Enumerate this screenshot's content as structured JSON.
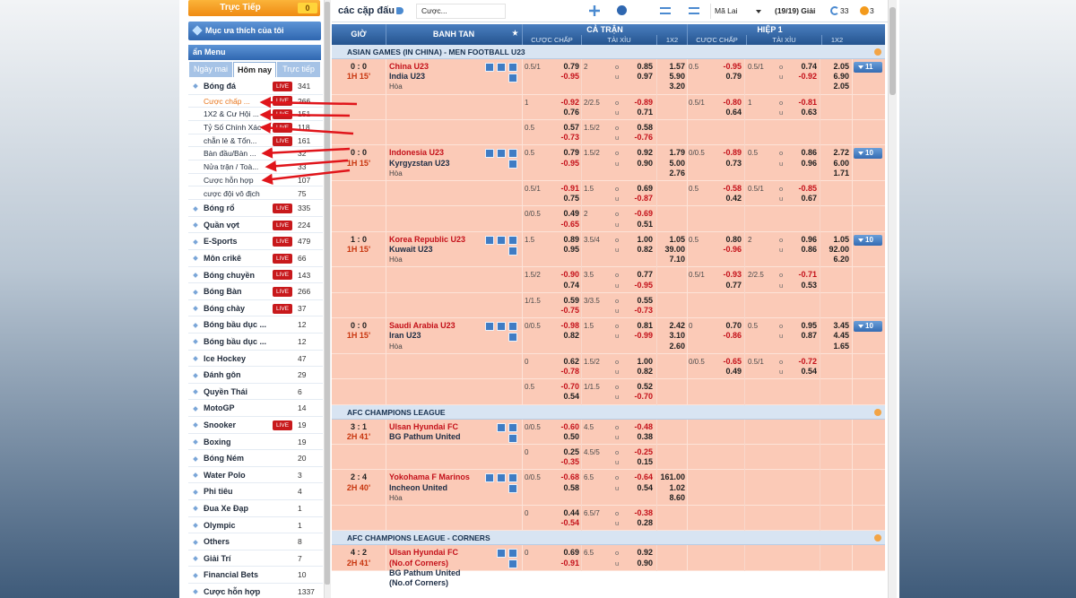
{
  "top_bar": {
    "title": "các cặp đấu",
    "bet_select": "Cược...",
    "odds_type": "Mã Lai",
    "league_count": "(19/19) Giải",
    "refresh_count": "33",
    "parlay_count": "3"
  },
  "sidebar": {
    "live_button": "Trực Tiếp",
    "live_count": "0",
    "favorites": "Mục ưa thích của tôi",
    "menu_toggle": "ẩn Menu",
    "tabs": [
      "Ngày mai",
      "Hôm nay",
      "Trực tiếp"
    ],
    "active_tab": 1,
    "sports": [
      {
        "name": "Bóng đá",
        "badge": "LIVE",
        "count": 341,
        "sub": [
          {
            "name": "Cược chấp ...",
            "badge": "LIVE",
            "count": 266,
            "active": true
          },
          {
            "name": "1X2 & Cư Hội ...",
            "badge": "LIVE",
            "count": 151
          },
          {
            "name": "Tỷ Số Chính Xác",
            "badge": "LIVE",
            "count": 118
          },
          {
            "name": "chẵn lẻ & Tổn...",
            "badge": "LIVE",
            "count": 161
          },
          {
            "name": "Bàn đầu/Bàn ...",
            "count": 32
          },
          {
            "name": "Nửa trận / Toà...",
            "count": 33
          },
          {
            "name": "Cược hỗn hợp",
            "count": 107
          },
          {
            "name": "cược đội vô địch",
            "count": 75
          }
        ]
      },
      {
        "name": "Bóng rổ",
        "badge": "LIVE",
        "count": 335
      },
      {
        "name": "Quần vợt",
        "badge": "LIVE",
        "count": 224
      },
      {
        "name": "E-Sports",
        "badge": "LIVE",
        "count": 479
      },
      {
        "name": "Môn crikê",
        "badge": "LIVE",
        "count": 66
      },
      {
        "name": "Bóng chuyền",
        "badge": "LIVE",
        "count": 143
      },
      {
        "name": "Bóng Bàn",
        "badge": "LIVE",
        "count": 266
      },
      {
        "name": "Bóng chày",
        "badge": "LIVE",
        "count": 37
      },
      {
        "name": "Bóng bầu dục ...",
        "count": 12
      },
      {
        "name": "Bóng bầu dục ...",
        "count": 12
      },
      {
        "name": "Ice Hockey",
        "count": 47
      },
      {
        "name": "Đánh gôn",
        "count": 29
      },
      {
        "name": "Quyền Thái",
        "count": 6
      },
      {
        "name": "MotoGP",
        "count": 14
      },
      {
        "name": "Snooker",
        "badge": "LIVE",
        "count": 19
      },
      {
        "name": "Boxing",
        "count": 19
      },
      {
        "name": "Bóng Ném",
        "count": 20
      },
      {
        "name": "Water Polo",
        "count": 3
      },
      {
        "name": "Phi tiêu",
        "count": 4
      },
      {
        "name": "Đua Xe Đạp",
        "count": 1
      },
      {
        "name": "Olympic",
        "count": 1
      },
      {
        "name": "Others",
        "count": 8
      },
      {
        "name": "Giải Trí",
        "count": 7
      },
      {
        "name": "Financial Bets",
        "count": 10
      },
      {
        "name": "Cược hỗn hợp",
        "count": 1337
      }
    ]
  },
  "table": {
    "headers": {
      "time": "GIỜ",
      "match": "BANH TAN",
      "full_time": "CẢ TRẬN",
      "first_half": "HIỆP 1",
      "handicap": "CƯỢC CHẤP",
      "over_under": "TÀI XỈU",
      "one_x_two": "1X2",
      "over": "o",
      "under": "u"
    },
    "leagues": [
      {
        "name": "ASIAN GAMES (IN CHINA) - MEN FOOTBALL U23",
        "matches": [
          {
            "score": "0 : 0",
            "clock": "1H 15'",
            "home": "China U23",
            "away": "India U23",
            "draw": "Hòa",
            "more": 11,
            "rows": [
              [
                "0.5/1",
                "0.79",
                "-0.95",
                "2",
                "0.85",
                "0.97",
                "1.57",
                "5.90",
                "3.20",
                "0.5",
                "-0.95",
                "0.79",
                "0.5/1",
                "0.74",
                "-0.92",
                "2.05",
                "6.90",
                "2.05"
              ],
              [
                "1",
                "-0.92",
                "0.76",
                "2/2.5",
                "-0.89",
                "0.71",
                null,
                null,
                null,
                "0.5/1",
                "-0.80",
                "0.64",
                "1",
                "-0.81",
                "0.63",
                null,
                null,
                null
              ],
              [
                "0.5",
                "0.57",
                "-0.73",
                "1.5/2",
                "0.58",
                "-0.76",
                null,
                null,
                null,
                null,
                null,
                null,
                null,
                null,
                null,
                null,
                null,
                null
              ]
            ]
          },
          {
            "score": "0 : 0",
            "clock": "1H 15'",
            "home": "Indonesia U23",
            "away": "Kyrgyzstan U23",
            "draw": "Hòa",
            "more": 10,
            "rows": [
              [
                "0.5",
                "0.79",
                "-0.95",
                "1.5/2",
                "0.92",
                "0.90",
                "1.79",
                "5.00",
                "2.76",
                "0/0.5",
                "-0.89",
                "0.73",
                "0.5",
                "0.86",
                "0.96",
                "2.72",
                "6.00",
                "1.71"
              ],
              [
                "0.5/1",
                "-0.91",
                "0.75",
                "1.5",
                "0.69",
                "-0.87",
                null,
                null,
                null,
                "0.5",
                "-0.58",
                "0.42",
                "0.5/1",
                "-0.85",
                "0.67",
                null,
                null,
                null
              ],
              [
                "0/0.5",
                "0.49",
                "-0.65",
                "2",
                "-0.69",
                "0.51",
                null,
                null,
                null,
                null,
                null,
                null,
                null,
                null,
                null,
                null,
                null,
                null
              ]
            ]
          },
          {
            "score": "1 : 0",
            "clock": "1H 15'",
            "home": "Korea Republic U23",
            "away": "Kuwait U23",
            "draw": "Hòa",
            "more": 10,
            "rows": [
              [
                "1.5",
                "0.89",
                "0.95",
                "3.5/4",
                "1.00",
                "0.82",
                "1.05",
                "39.00",
                "7.10",
                "0.5",
                "0.80",
                "-0.96",
                "2",
                "0.96",
                "0.86",
                "1.05",
                "92.00",
                "6.20"
              ],
              [
                "1.5/2",
                "-0.90",
                "0.74",
                "3.5",
                "0.77",
                "-0.95",
                null,
                null,
                null,
                "0.5/1",
                "-0.93",
                "0.77",
                "2/2.5",
                "-0.71",
                "0.53",
                null,
                null,
                null
              ],
              [
                "1/1.5",
                "0.59",
                "-0.75",
                "3/3.5",
                "0.55",
                "-0.73",
                null,
                null,
                null,
                null,
                null,
                null,
                null,
                null,
                null,
                null,
                null,
                null
              ]
            ]
          },
          {
            "score": "0 : 0",
            "clock": "1H 15'",
            "home": "Saudi Arabia U23",
            "away": "Iran U23",
            "draw": "Hòa",
            "more": 10,
            "rows": [
              [
                "0/0.5",
                "-0.98",
                "0.82",
                "1.5",
                "0.81",
                "-0.99",
                "2.42",
                "3.10",
                "2.60",
                "0",
                "0.70",
                "-0.86",
                "0.5",
                "0.95",
                "0.87",
                "3.45",
                "4.45",
                "1.65"
              ],
              [
                "0",
                "0.62",
                "-0.78",
                "1.5/2",
                "1.00",
                "0.82",
                null,
                null,
                null,
                "0/0.5",
                "-0.65",
                "0.49",
                "0.5/1",
                "-0.72",
                "0.54",
                null,
                null,
                null
              ],
              [
                "0.5",
                "-0.70",
                "0.54",
                "1/1.5",
                "0.52",
                "-0.70",
                null,
                null,
                null,
                null,
                null,
                null,
                null,
                null,
                null,
                null,
                null,
                null
              ]
            ]
          }
        ]
      },
      {
        "name": "AFC CHAMPIONS LEAGUE",
        "matches": [
          {
            "score": "3 : 1",
            "clock": "2H 41'",
            "home": "Ulsan Hyundai FC",
            "away": "BG Pathum United",
            "rows": [
              [
                "0/0.5",
                "-0.60",
                "0.50",
                "4.5",
                "-0.48",
                "0.38",
                null,
                null,
                null,
                null,
                null,
                null,
                null,
                null,
                null,
                null,
                null,
                null
              ],
              [
                "0",
                "0.25",
                "-0.35",
                "4.5/5",
                "-0.25",
                "0.15",
                null,
                null,
                null,
                null,
                null,
                null,
                null,
                null,
                null,
                null,
                null,
                null
              ]
            ]
          },
          {
            "score": "2 : 4",
            "clock": "2H 40'",
            "home": "Yokohama F Marinos",
            "away": "Incheon United",
            "draw": "Hòa",
            "rows": [
              [
                "0/0.5",
                "-0.68",
                "0.58",
                "6.5",
                "-0.64",
                "0.54",
                "161.00",
                "1.02",
                "8.60",
                null,
                null,
                null,
                null,
                null,
                null,
                null,
                null,
                null
              ],
              [
                "0",
                "0.44",
                "-0.54",
                "6.5/7",
                "-0.38",
                "0.28",
                null,
                null,
                null,
                null,
                null,
                null,
                null,
                null,
                null,
                null,
                null,
                null
              ]
            ]
          }
        ]
      },
      {
        "name": "AFC CHAMPIONS LEAGUE - CORNERS",
        "matches": [
          {
            "score": "4 : 2",
            "clock": "2H 41'",
            "home": "Ulsan Hyundai FC (No.of Corners)",
            "away": "BG Pathum United (No.of Corners)",
            "rows": [
              [
                "0",
                "0.69",
                "-0.91",
                "6.5",
                "0.92",
                "0.90",
                null,
                null,
                null,
                null,
                null,
                null,
                null,
                null,
                null,
                null,
                null,
                null
              ]
            ]
          }
        ]
      }
    ]
  }
}
